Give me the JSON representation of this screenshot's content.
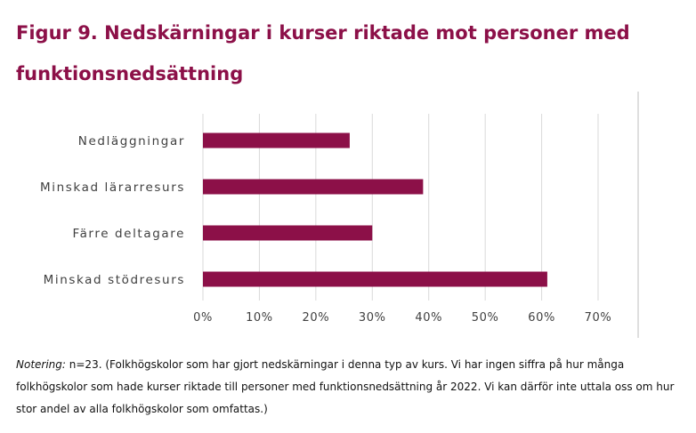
{
  "chart_data": {
    "type": "bar",
    "orientation": "horizontal",
    "title": "Figur 9. Nedskärningar i kurser riktade mot personer med funktionsnedsättning",
    "categories": [
      "Nedläggningar",
      "Minskad lärarresurs",
      "Färre deltagare",
      "Minskad stödresurs"
    ],
    "values": [
      26,
      39,
      30,
      61
    ],
    "unit": "%",
    "xlim": [
      0,
      70
    ],
    "xticks": [
      0,
      10,
      20,
      30,
      40,
      50,
      60,
      70
    ],
    "xtick_labels": [
      "0%",
      "10%",
      "20%",
      "30%",
      "40%",
      "50%",
      "60%",
      "70%"
    ],
    "grid": "vertical",
    "legend": "none",
    "bar_color": "#8c1048"
  },
  "note": {
    "label": "Notering:",
    "text": " n=23. (Folkhögskolor som har gjort nedskärningar i denna typ av kurs. Vi har ingen siffra på hur många folkhögskolor som hade kurser riktade till personer med funktionsnedsättning år 2022. Vi kan därför inte uttala oss om hur stor andel av alla folkhögskolor som omfattas.)"
  }
}
